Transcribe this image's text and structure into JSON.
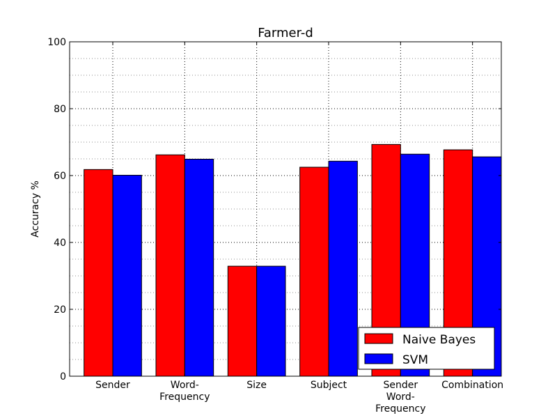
{
  "chart_data": {
    "type": "bar",
    "title": "Farmer-d",
    "xlabel": "",
    "ylabel": "Accuracy %",
    "ylim": [
      0,
      100
    ],
    "yticks": [
      0,
      20,
      40,
      60,
      80,
      100
    ],
    "minor_ygrid_step": 5,
    "grid": true,
    "legend_position": "lower right",
    "categories": [
      [
        "Sender"
      ],
      [
        "Word-",
        "Frequency"
      ],
      [
        "Size"
      ],
      [
        "Subject"
      ],
      [
        "Sender",
        "Word-",
        "Frequency"
      ],
      [
        "Combination"
      ]
    ],
    "series": [
      {
        "name": "Naive Bayes",
        "color": "#ff0000",
        "values": [
          61.8,
          66.2,
          32.9,
          62.5,
          69.3,
          67.7
        ]
      },
      {
        "name": "SVM",
        "color": "#0000ff",
        "values": [
          60.1,
          64.9,
          32.9,
          64.3,
          66.4,
          65.6
        ]
      }
    ]
  }
}
